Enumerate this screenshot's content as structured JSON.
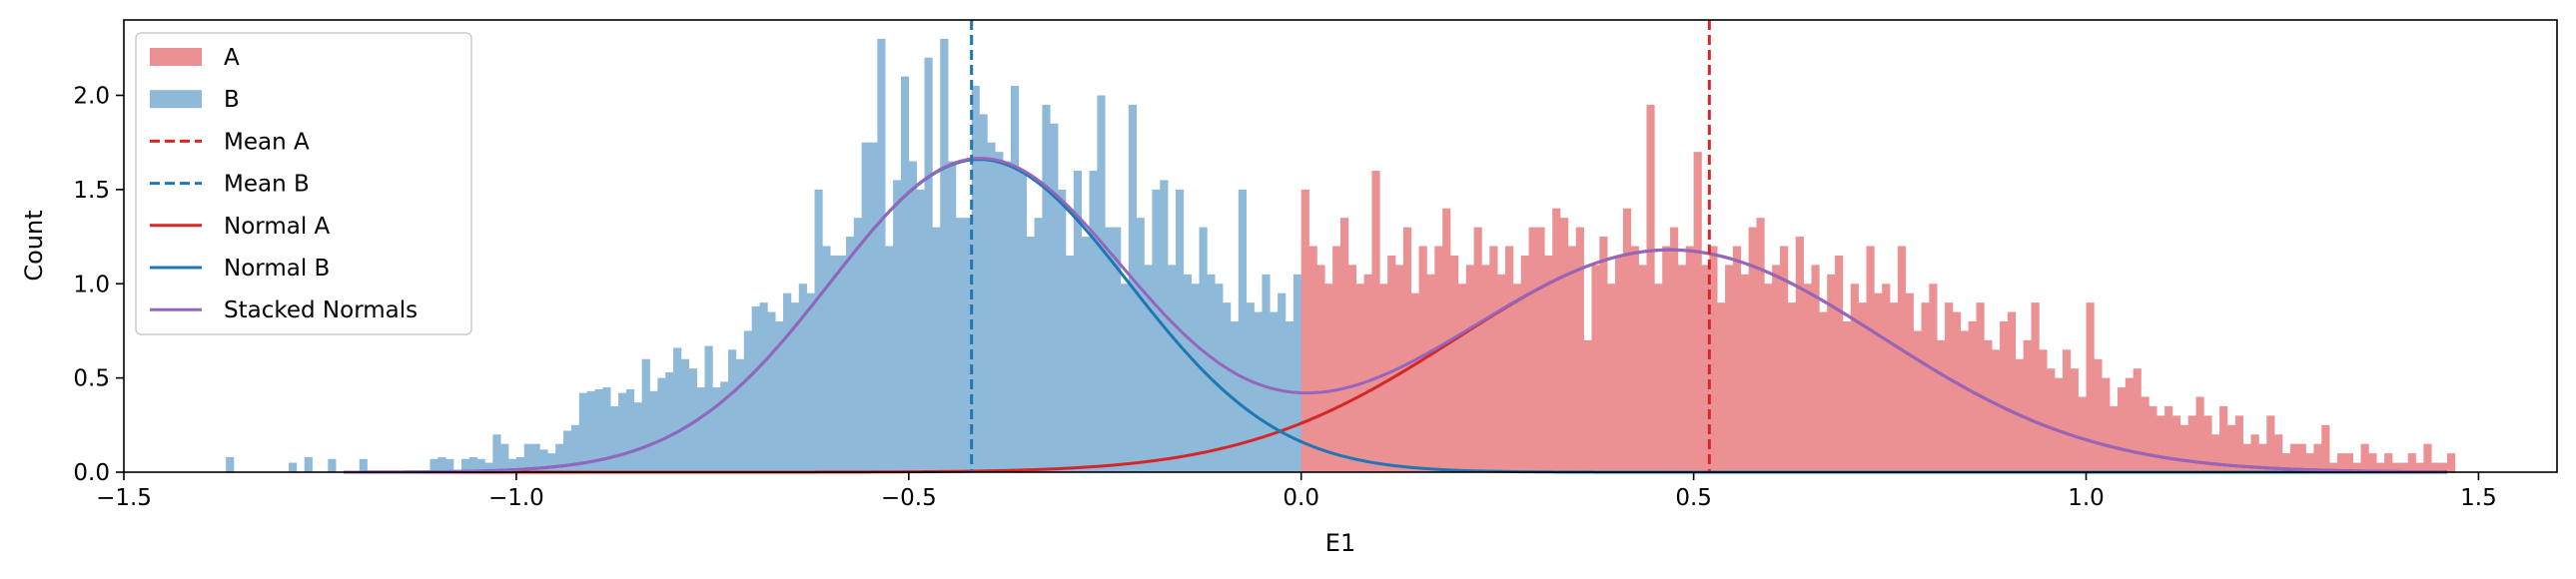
{
  "chart_data": {
    "type": "bar",
    "title": "",
    "xlabel": "E1",
    "ylabel": "Count",
    "xlim": [
      -1.5,
      1.6
    ],
    "ylim": [
      0,
      2.4
    ],
    "grid": false,
    "legend_placement": "top-left",
    "bin_width": 0.01,
    "x_ticks": [
      -1.5,
      -1.0,
      -0.5,
      0.0,
      0.5,
      1.0,
      1.5
    ],
    "x_tick_labels": [
      "−1.5",
      "−1.0",
      "−0.5",
      "0.0",
      "0.5",
      "1.0",
      "1.5"
    ],
    "y_ticks": [
      0.0,
      0.5,
      1.0,
      1.5,
      2.0
    ],
    "y_tick_labels": [
      "0.0",
      "0.5",
      "1.0",
      "1.5",
      "2.0"
    ],
    "colors": {
      "A_bar": "#eb9193",
      "B_bar": "#8fb9d9",
      "mean_a": "#d62728",
      "mean_b": "#1f77b4",
      "normal_a": "#d62728",
      "normal_b": "#1f77b4",
      "stacked": "#9467bd"
    },
    "series": [
      {
        "name": "A",
        "kind": "histogram",
        "bins": [
          [
            0.0,
            1.5
          ],
          [
            0.01,
            1.2
          ],
          [
            0.02,
            1.1
          ],
          [
            0.03,
            1.0
          ],
          [
            0.04,
            1.2
          ],
          [
            0.05,
            1.35
          ],
          [
            0.06,
            1.1
          ],
          [
            0.07,
            1.0
          ],
          [
            0.08,
            1.05
          ],
          [
            0.09,
            1.6
          ],
          [
            0.1,
            1.0
          ],
          [
            0.11,
            1.15
          ],
          [
            0.12,
            1.1
          ],
          [
            0.13,
            1.3
          ],
          [
            0.14,
            0.95
          ],
          [
            0.15,
            1.2
          ],
          [
            0.16,
            1.05
          ],
          [
            0.17,
            1.2
          ],
          [
            0.18,
            1.4
          ],
          [
            0.19,
            1.15
          ],
          [
            0.2,
            1.0
          ],
          [
            0.21,
            1.1
          ],
          [
            0.22,
            1.3
          ],
          [
            0.23,
            1.1
          ],
          [
            0.24,
            1.2
          ],
          [
            0.25,
            1.05
          ],
          [
            0.26,
            1.2
          ],
          [
            0.27,
            1.0
          ],
          [
            0.28,
            1.15
          ],
          [
            0.29,
            1.3
          ],
          [
            0.3,
            1.3
          ],
          [
            0.31,
            1.15
          ],
          [
            0.32,
            1.4
          ],
          [
            0.33,
            1.35
          ],
          [
            0.34,
            1.2
          ],
          [
            0.35,
            1.3
          ],
          [
            0.36,
            0.7
          ],
          [
            0.37,
            1.1
          ],
          [
            0.38,
            1.25
          ],
          [
            0.39,
            1.0
          ],
          [
            0.4,
            1.15
          ],
          [
            0.41,
            1.4
          ],
          [
            0.42,
            1.2
          ],
          [
            0.43,
            1.1
          ],
          [
            0.44,
            1.95
          ],
          [
            0.45,
            1.0
          ],
          [
            0.46,
            1.2
          ],
          [
            0.47,
            1.3
          ],
          [
            0.48,
            1.1
          ],
          [
            0.49,
            1.2
          ],
          [
            0.5,
            1.7
          ],
          [
            0.51,
            1.1
          ],
          [
            0.52,
            1.2
          ],
          [
            0.53,
            0.9
          ],
          [
            0.54,
            1.1
          ],
          [
            0.55,
            1.2
          ],
          [
            0.56,
            1.05
          ],
          [
            0.57,
            1.3
          ],
          [
            0.58,
            1.35
          ],
          [
            0.59,
            1.0
          ],
          [
            0.6,
            1.1
          ],
          [
            0.61,
            1.2
          ],
          [
            0.62,
            0.9
          ],
          [
            0.63,
            1.25
          ],
          [
            0.64,
            1.0
          ],
          [
            0.65,
            1.1
          ],
          [
            0.66,
            0.85
          ],
          [
            0.67,
            1.05
          ],
          [
            0.68,
            1.15
          ],
          [
            0.69,
            0.8
          ],
          [
            0.7,
            1.0
          ],
          [
            0.71,
            0.9
          ],
          [
            0.72,
            1.2
          ],
          [
            0.73,
            0.95
          ],
          [
            0.74,
            1.0
          ],
          [
            0.75,
            0.9
          ],
          [
            0.76,
            1.2
          ],
          [
            0.77,
            0.95
          ],
          [
            0.78,
            0.75
          ],
          [
            0.79,
            0.9
          ],
          [
            0.8,
            1.0
          ],
          [
            0.81,
            0.7
          ],
          [
            0.82,
            0.9
          ],
          [
            0.83,
            0.85
          ],
          [
            0.84,
            0.75
          ],
          [
            0.85,
            0.8
          ],
          [
            0.86,
            0.9
          ],
          [
            0.87,
            0.7
          ],
          [
            0.88,
            0.65
          ],
          [
            0.89,
            0.8
          ],
          [
            0.9,
            0.85
          ],
          [
            0.91,
            0.6
          ],
          [
            0.92,
            0.7
          ],
          [
            0.93,
            0.9
          ],
          [
            0.94,
            0.65
          ],
          [
            0.95,
            0.55
          ],
          [
            0.96,
            0.5
          ],
          [
            0.97,
            0.65
          ],
          [
            0.98,
            0.55
          ],
          [
            0.99,
            0.4
          ],
          [
            1.0,
            0.9
          ],
          [
            1.01,
            0.6
          ],
          [
            1.02,
            0.5
          ],
          [
            1.03,
            0.35
          ],
          [
            1.04,
            0.45
          ],
          [
            1.05,
            0.5
          ],
          [
            1.06,
            0.55
          ],
          [
            1.07,
            0.4
          ],
          [
            1.08,
            0.35
          ],
          [
            1.09,
            0.3
          ],
          [
            1.1,
            0.35
          ],
          [
            1.11,
            0.3
          ],
          [
            1.12,
            0.25
          ],
          [
            1.13,
            0.3
          ],
          [
            1.14,
            0.4
          ],
          [
            1.15,
            0.3
          ],
          [
            1.16,
            0.2
          ],
          [
            1.17,
            0.35
          ],
          [
            1.18,
            0.25
          ],
          [
            1.19,
            0.3
          ],
          [
            1.2,
            0.15
          ],
          [
            1.21,
            0.2
          ],
          [
            1.22,
            0.15
          ],
          [
            1.23,
            0.3
          ],
          [
            1.24,
            0.2
          ],
          [
            1.25,
            0.1
          ],
          [
            1.26,
            0.15
          ],
          [
            1.27,
            0.15
          ],
          [
            1.28,
            0.1
          ],
          [
            1.29,
            0.15
          ],
          [
            1.3,
            0.25
          ],
          [
            1.31,
            0.05
          ],
          [
            1.32,
            0.1
          ],
          [
            1.33,
            0.1
          ],
          [
            1.34,
            0.05
          ],
          [
            1.35,
            0.15
          ],
          [
            1.36,
            0.1
          ],
          [
            1.37,
            0.05
          ],
          [
            1.38,
            0.1
          ],
          [
            1.39,
            0.05
          ],
          [
            1.4,
            0.05
          ],
          [
            1.41,
            0.1
          ],
          [
            1.42,
            0.05
          ],
          [
            1.43,
            0.15
          ],
          [
            1.44,
            0.05
          ],
          [
            1.45,
            0.05
          ],
          [
            1.46,
            0.1
          ]
        ]
      },
      {
        "name": "B",
        "kind": "histogram",
        "bins": [
          [
            -1.37,
            0.08
          ],
          [
            -1.29,
            0.05
          ],
          [
            -1.27,
            0.08
          ],
          [
            -1.24,
            0.07
          ],
          [
            -1.2,
            0.07
          ],
          [
            -1.11,
            0.07
          ],
          [
            -1.1,
            0.08
          ],
          [
            -1.09,
            0.07
          ],
          [
            -1.07,
            0.07
          ],
          [
            -1.06,
            0.08
          ],
          [
            -1.05,
            0.07
          ],
          [
            -1.04,
            0.05
          ],
          [
            -1.03,
            0.2
          ],
          [
            -1.02,
            0.15
          ],
          [
            -1.01,
            0.07
          ],
          [
            -1.0,
            0.08
          ],
          [
            -0.99,
            0.15
          ],
          [
            -0.98,
            0.15
          ],
          [
            -0.97,
            0.12
          ],
          [
            -0.96,
            0.1
          ],
          [
            -0.95,
            0.15
          ],
          [
            -0.94,
            0.22
          ],
          [
            -0.93,
            0.25
          ],
          [
            -0.92,
            0.42
          ],
          [
            -0.91,
            0.43
          ],
          [
            -0.9,
            0.44
          ],
          [
            -0.89,
            0.45
          ],
          [
            -0.88,
            0.35
          ],
          [
            -0.87,
            0.42
          ],
          [
            -0.86,
            0.44
          ],
          [
            -0.85,
            0.37
          ],
          [
            -0.84,
            0.6
          ],
          [
            -0.83,
            0.43
          ],
          [
            -0.82,
            0.5
          ],
          [
            -0.81,
            0.53
          ],
          [
            -0.8,
            0.66
          ],
          [
            -0.79,
            0.6
          ],
          [
            -0.78,
            0.55
          ],
          [
            -0.77,
            0.45
          ],
          [
            -0.76,
            0.67
          ],
          [
            -0.75,
            0.45
          ],
          [
            -0.74,
            0.48
          ],
          [
            -0.73,
            0.65
          ],
          [
            -0.72,
            0.6
          ],
          [
            -0.71,
            0.75
          ],
          [
            -0.7,
            0.88
          ],
          [
            -0.69,
            0.9
          ],
          [
            -0.68,
            0.85
          ],
          [
            -0.67,
            0.8
          ],
          [
            -0.66,
            0.95
          ],
          [
            -0.65,
            0.9
          ],
          [
            -0.64,
            1.0
          ],
          [
            -0.63,
            0.95
          ],
          [
            -0.62,
            1.5
          ],
          [
            -0.61,
            1.2
          ],
          [
            -0.6,
            1.15
          ],
          [
            -0.59,
            1.15
          ],
          [
            -0.58,
            1.25
          ],
          [
            -0.57,
            1.35
          ],
          [
            -0.56,
            1.75
          ],
          [
            -0.55,
            1.75
          ],
          [
            -0.54,
            2.3
          ],
          [
            -0.53,
            1.2
          ],
          [
            -0.52,
            1.55
          ],
          [
            -0.51,
            2.1
          ],
          [
            -0.5,
            1.65
          ],
          [
            -0.49,
            1.5
          ],
          [
            -0.48,
            2.2
          ],
          [
            -0.47,
            1.3
          ],
          [
            -0.46,
            2.3
          ],
          [
            -0.45,
            1.65
          ],
          [
            -0.44,
            1.35
          ],
          [
            -0.43,
            1.35
          ],
          [
            -0.42,
            2.05
          ],
          [
            -0.41,
            1.9
          ],
          [
            -0.4,
            1.75
          ],
          [
            -0.39,
            1.7
          ],
          [
            -0.38,
            1.65
          ],
          [
            -0.37,
            2.05
          ],
          [
            -0.36,
            1.6
          ],
          [
            -0.35,
            1.25
          ],
          [
            -0.34,
            1.35
          ],
          [
            -0.33,
            1.95
          ],
          [
            -0.32,
            1.85
          ],
          [
            -0.31,
            1.5
          ],
          [
            -0.3,
            1.15
          ],
          [
            -0.29,
            1.6
          ],
          [
            -0.28,
            1.25
          ],
          [
            -0.27,
            1.6
          ],
          [
            -0.26,
            2.0
          ],
          [
            -0.25,
            1.3
          ],
          [
            -0.24,
            1.3
          ],
          [
            -0.23,
            1.0
          ],
          [
            -0.22,
            1.95
          ],
          [
            -0.21,
            1.35
          ],
          [
            -0.2,
            1.1
          ],
          [
            -0.19,
            1.5
          ],
          [
            -0.18,
            1.55
          ],
          [
            -0.17,
            1.1
          ],
          [
            -0.16,
            1.5
          ],
          [
            -0.15,
            1.05
          ],
          [
            -0.14,
            1.0
          ],
          [
            -0.13,
            1.3
          ],
          [
            -0.12,
            1.05
          ],
          [
            -0.11,
            1.0
          ],
          [
            -0.1,
            0.9
          ],
          [
            -0.09,
            0.8
          ],
          [
            -0.08,
            1.5
          ],
          [
            -0.07,
            0.9
          ],
          [
            -0.06,
            0.85
          ],
          [
            -0.05,
            1.05
          ],
          [
            -0.04,
            0.85
          ],
          [
            -0.03,
            0.95
          ],
          [
            -0.02,
            0.8
          ],
          [
            -0.01,
            1.05
          ]
        ]
      },
      {
        "name": "Mean A",
        "kind": "vline",
        "x": 0.52
      },
      {
        "name": "Mean B",
        "kind": "vline",
        "x": -0.42
      },
      {
        "name": "Normal A",
        "kind": "normal",
        "mu": 0.47,
        "sigma": 0.27,
        "peak": 1.18
      },
      {
        "name": "Normal B",
        "kind": "normal",
        "mu": -0.41,
        "sigma": 0.19,
        "peak": 1.66
      },
      {
        "name": "Stacked Normals",
        "kind": "sum"
      }
    ],
    "legend": [
      "A",
      "B",
      "Mean A",
      "Mean B",
      "Normal A",
      "Normal B",
      "Stacked Normals"
    ]
  }
}
